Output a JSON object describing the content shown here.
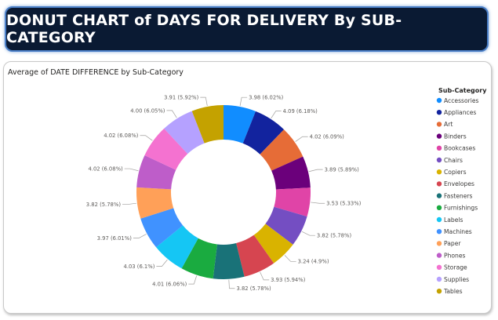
{
  "header": {
    "title": "DONUT CHART of DAYS FOR DELIVERY By SUB-CATEGORY"
  },
  "chart_data": {
    "type": "pie",
    "donut": true,
    "title": "Average of DATE DIFFERENCE by Sub-Category",
    "legend_title": "Sub-Category",
    "legend_position": "right",
    "slices": [
      {
        "name": "Accessories",
        "value": 3.98,
        "label": "3.98 (6.02%)",
        "color": "#118dff"
      },
      {
        "name": "Appliances",
        "value": 4.09,
        "label": "4.09 (6.18%)",
        "color": "#12239e"
      },
      {
        "name": "Art",
        "value": 4.02,
        "label": "4.02 (6.09%)",
        "color": "#e66c37"
      },
      {
        "name": "Binders",
        "value": 3.89,
        "label": "3.89 (5.89%)",
        "color": "#6b007b"
      },
      {
        "name": "Bookcases",
        "value": 3.53,
        "label": "3.53 (5.33%)",
        "color": "#e044a7"
      },
      {
        "name": "Chairs",
        "value": 3.82,
        "label": "3.82 (5.78%)",
        "color": "#744ec2"
      },
      {
        "name": "Copiers",
        "value": 3.24,
        "label": "3.24 (4.9%)",
        "color": "#d9b300"
      },
      {
        "name": "Envelopes",
        "value": 3.93,
        "label": "3.93 (5.94%)",
        "color": "#d64550"
      },
      {
        "name": "Fasteners",
        "value": 3.82,
        "label": "3.82 (5.78%)",
        "color": "#197278"
      },
      {
        "name": "Furnishings",
        "value": 4.01,
        "label": "4.01 (6.06%)",
        "color": "#1aab40"
      },
      {
        "name": "Labels",
        "value": 4.03,
        "label": "4.03 (6.1%)",
        "color": "#15c6f4"
      },
      {
        "name": "Machines",
        "value": 3.97,
        "label": "3.97 (6.01%)",
        "color": "#4092ff"
      },
      {
        "name": "Paper",
        "value": 3.82,
        "label": "3.82 (5.78%)",
        "color": "#ffa058"
      },
      {
        "name": "Phones",
        "value": 4.02,
        "label": "4.02 (6.08%)",
        "color": "#be5dc9"
      },
      {
        "name": "Storage",
        "value": 4.02,
        "label": "4.02 (6.08%)",
        "color": "#f472d0"
      },
      {
        "name": "Supplies",
        "value": 4.0,
        "label": "4.00 (6.05%)",
        "color": "#b5a1ff"
      },
      {
        "name": "Tables",
        "value": 3.91,
        "label": "3.91 (5.92%)",
        "color": "#c4a200"
      }
    ]
  }
}
